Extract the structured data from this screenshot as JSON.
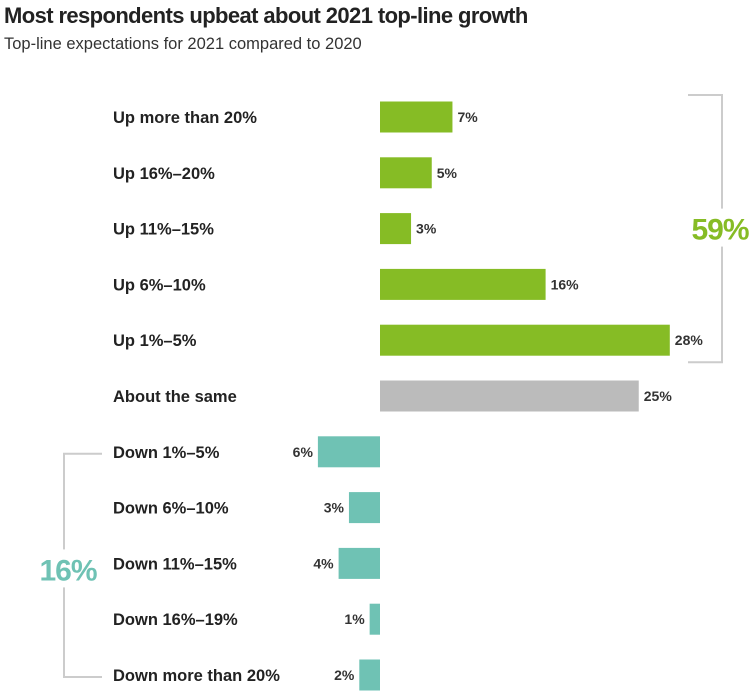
{
  "title": "Most respondents upbeat about 2021 top-line growth",
  "subtitle": "Top-line expectations for 2021 compared to 2020",
  "colors": {
    "up": "#86bc25",
    "same": "#bbbbbb",
    "down": "#6fc2b4",
    "bracket": "#cccccc"
  },
  "chart_data": {
    "type": "bar",
    "orientation": "horizontal-diverging",
    "title": "Most respondents upbeat about 2021 top-line growth",
    "subtitle": "Top-line expectations for 2021 compared to 2020",
    "value_unit": "%",
    "categories": [
      "Up more than 20%",
      "Up 16%–20%",
      "Up 11%–15%",
      "Up 6%–10%",
      "Up 1%–5%",
      "About the same",
      "Down 1%–5%",
      "Down 6%–10%",
      "Down 11%–15%",
      "Down 16%–19%",
      "Down more than 20%"
    ],
    "values": [
      7,
      5,
      3,
      16,
      28,
      25,
      6,
      3,
      4,
      1,
      2
    ],
    "value_labels": [
      "7%",
      "5%",
      "3%",
      "16%",
      "28%",
      "25%",
      "6%",
      "3%",
      "4%",
      "1%",
      "2%"
    ],
    "groups": [
      "up",
      "up",
      "up",
      "up",
      "up",
      "same",
      "down",
      "down",
      "down",
      "down",
      "down"
    ],
    "group_totals": [
      {
        "group": "up",
        "label": "59%",
        "value": 59
      },
      {
        "group": "down",
        "label": "16%",
        "value": 16
      }
    ],
    "grid": false,
    "legend": "none"
  }
}
